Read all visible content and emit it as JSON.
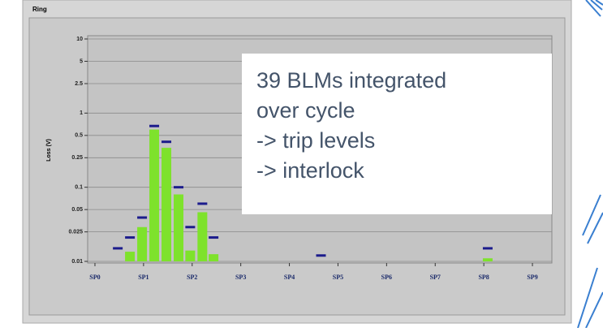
{
  "chart_data": {
    "type": "bar",
    "title": "Ring",
    "ylabel": "Loss (V)",
    "log_y": true,
    "grid": true,
    "ylim": [
      0.01,
      10
    ],
    "yticks": [
      10,
      5,
      2.5,
      1,
      0.5,
      0.25,
      0.1,
      0.05,
      0.025,
      0.01
    ],
    "xlim": [
      -0.15,
      9.4
    ],
    "xticks": [
      {
        "value": 0,
        "label": "SP0"
      },
      {
        "value": 1,
        "label": "SP1"
      },
      {
        "value": 2,
        "label": "SP2"
      },
      {
        "value": 3,
        "label": "SP3"
      },
      {
        "value": 4,
        "label": "SP4"
      },
      {
        "value": 5,
        "label": "SP5"
      },
      {
        "value": 6,
        "label": "SP6"
      },
      {
        "value": 7,
        "label": "SP7"
      },
      {
        "value": 8,
        "label": "SP8"
      },
      {
        "value": 9,
        "label": "SP9"
      }
    ],
    "x": [
      0.47,
      0.72,
      0.97,
      1.22,
      1.47,
      1.72,
      1.96,
      2.21,
      2.44,
      4.65,
      8.08
    ],
    "series": [
      {
        "color": "#7ee22c",
        "style": "bar",
        "values": [
          null,
          0.0135,
          0.029,
          0.6,
          0.34,
          0.08,
          0.014,
          0.046,
          0.0125,
          null,
          0.011
        ]
      },
      {
        "color": "#1c1c8c",
        "style": "marker",
        "values": [
          0.015,
          0.021,
          0.039,
          0.67,
          0.41,
          0.1,
          0.029,
          0.06,
          0.021,
          0.012,
          0.015
        ]
      }
    ],
    "annotation": [
      "39 BLMs integrated",
      "over cycle",
      "-> trip levels",
      "-> interlock"
    ]
  }
}
